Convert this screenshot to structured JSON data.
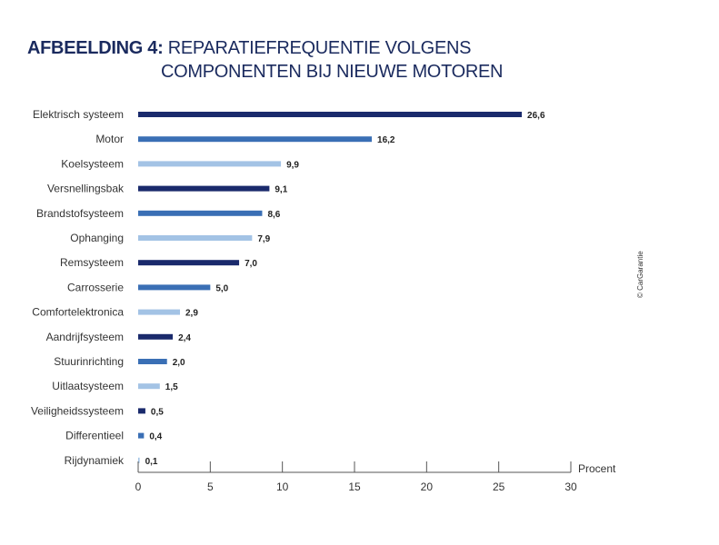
{
  "title": {
    "prefix": "AFBEELDING 4:",
    "line1": "REPARATIEFREQUENTIE VOLGENS",
    "line2": "COMPONENTEN BIJ NIEUWE MOTOREN"
  },
  "copyright": "© CarGarantie",
  "chart_data": {
    "type": "bar",
    "orientation": "horizontal",
    "categories": [
      "Elektrisch systeem",
      "Motor",
      "Koelsysteem",
      "Versnellingsbak",
      "Brandstofsysteem",
      "Ophanging",
      "Remsysteem",
      "Carrosserie",
      "Comfortelektronica",
      "Aandrijfsysteem",
      "Stuurinrichting",
      "Uitlaatsysteem",
      "Veiligheidssysteem",
      "Differentieel",
      "Rijdynamiek"
    ],
    "values": [
      26.6,
      16.2,
      9.9,
      9.1,
      8.6,
      7.9,
      7.0,
      5.0,
      2.9,
      2.4,
      2.0,
      1.5,
      0.5,
      0.4,
      0.1
    ],
    "value_labels": [
      "26,6",
      "16,2",
      "9,9",
      "9,1",
      "8,6",
      "7,9",
      "7,0",
      "5,0",
      "2,9",
      "2,4",
      "2,0",
      "1,5",
      "0,5",
      "0,4",
      "0,1"
    ],
    "bar_colors": [
      "#1a2a6c",
      "#3a6fb5",
      "#a3c3e5"
    ],
    "xlabel": "Procent",
    "xlim": [
      0,
      30
    ],
    "xticks": [
      0,
      5,
      10,
      15,
      20,
      25,
      30
    ],
    "grid": false,
    "legend": "none"
  }
}
